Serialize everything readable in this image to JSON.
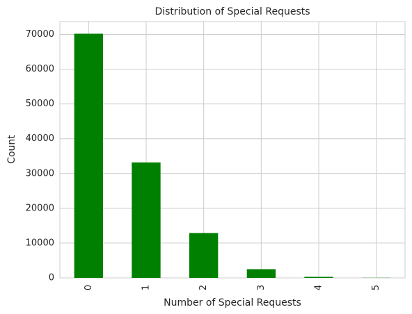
{
  "chart_data": {
    "type": "bar",
    "title": "Distribution of Special Requests",
    "x_label": "Number of Special Requests",
    "y_label": "Count",
    "categories": [
      "0",
      "1",
      "2",
      "3",
      "4",
      "5"
    ],
    "values": [
      70200,
      33200,
      12900,
      2500,
      300,
      40
    ],
    "color": "#008000",
    "ylim": [
      0,
      73700
    ],
    "yticks": [
      0,
      10000,
      20000,
      30000,
      40000,
      50000,
      60000,
      70000
    ],
    "grid": true
  }
}
